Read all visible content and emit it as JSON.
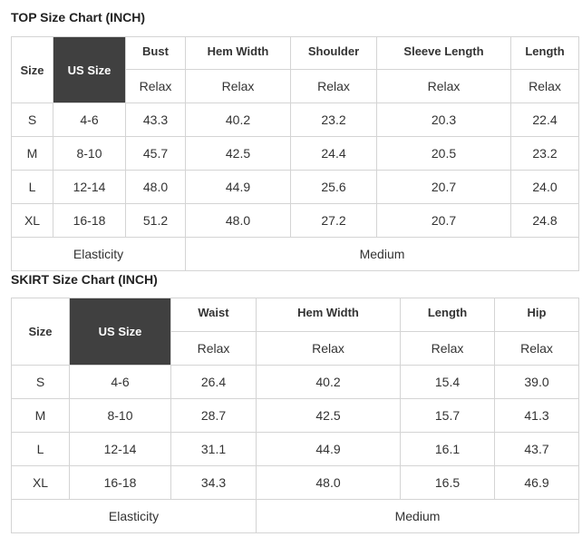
{
  "top": {
    "title": "TOP Size Chart (INCH)",
    "headers": [
      "Size",
      "US Size",
      "Bust",
      "Hem Width",
      "Shoulder",
      "Sleeve Length",
      "Length"
    ],
    "subheaders": [
      "Relax",
      "Relax",
      "Relax",
      "Relax",
      "Relax"
    ],
    "rows": [
      [
        "S",
        "4-6",
        "43.3",
        "40.2",
        "23.2",
        "20.3",
        "22.4"
      ],
      [
        "M",
        "8-10",
        "45.7",
        "42.5",
        "24.4",
        "20.5",
        "23.2"
      ],
      [
        "L",
        "12-14",
        "48.0",
        "44.9",
        "25.6",
        "20.7",
        "24.0"
      ],
      [
        "XL",
        "16-18",
        "51.2",
        "48.0",
        "27.2",
        "20.7",
        "24.8"
      ]
    ],
    "footer": [
      "Elasticity",
      "Medium"
    ]
  },
  "skirt": {
    "title": "SKIRT Size Chart (INCH)",
    "headers": [
      "Size",
      "US Size",
      "Waist",
      "Hem Width",
      "Length",
      "Hip"
    ],
    "subheaders": [
      "Relax",
      "Relax",
      "Relax",
      "Relax"
    ],
    "rows": [
      [
        "S",
        "4-6",
        "26.4",
        "40.2",
        "15.4",
        "39.0"
      ],
      [
        "M",
        "8-10",
        "28.7",
        "42.5",
        "15.7",
        "41.3"
      ],
      [
        "L",
        "12-14",
        "31.1",
        "44.9",
        "16.1",
        "43.7"
      ],
      [
        "XL",
        "16-18",
        "34.3",
        "48.0",
        "16.5",
        "46.9"
      ]
    ],
    "footer": [
      "Elasticity",
      "Medium"
    ]
  }
}
